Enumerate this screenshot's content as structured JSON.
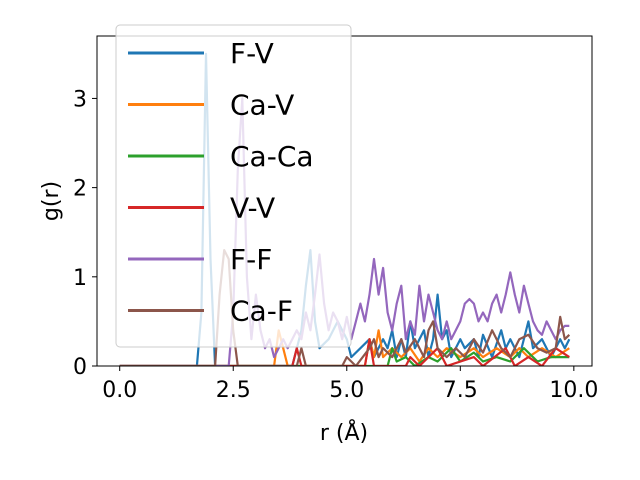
{
  "chart_data": {
    "type": "line",
    "xlabel": "r (Å)",
    "ylabel": "g(r)",
    "xlim": [
      -0.5,
      10.4
    ],
    "ylim": [
      0,
      3.7
    ],
    "xticks": [
      0.0,
      2.5,
      5.0,
      7.5,
      10.0
    ],
    "xtick_labels": [
      "0.0",
      "2.5",
      "5.0",
      "7.5",
      "10.0"
    ],
    "yticks": [
      0,
      1,
      2,
      3
    ],
    "ytick_labels": [
      "0",
      "1",
      "2",
      "3"
    ],
    "grid": false,
    "legend_position": "upper-left",
    "series": [
      {
        "name": "F-V",
        "color": "#1f77b4",
        "points": [
          [
            0,
            0
          ],
          [
            1.7,
            0
          ],
          [
            1.8,
            0.6
          ],
          [
            1.9,
            3.5
          ],
          [
            2.0,
            1.2
          ],
          [
            2.1,
            0
          ],
          [
            3.8,
            0
          ],
          [
            4.0,
            0.4
          ],
          [
            4.1,
            0.9
          ],
          [
            4.2,
            1.3
          ],
          [
            4.3,
            0.5
          ],
          [
            4.4,
            0.2
          ],
          [
            4.6,
            0.3
          ],
          [
            4.8,
            0.5
          ],
          [
            5.0,
            0.3
          ],
          [
            5.1,
            0.1
          ],
          [
            5.3,
            0.2
          ],
          [
            5.5,
            0.3
          ],
          [
            5.6,
            0.1
          ],
          [
            5.8,
            0.3
          ],
          [
            5.9,
            0.2
          ],
          [
            6.0,
            0.4
          ],
          [
            6.1,
            0.1
          ],
          [
            6.2,
            0.3
          ],
          [
            6.3,
            0.1
          ],
          [
            6.4,
            0.5
          ],
          [
            6.5,
            0.2
          ],
          [
            6.7,
            0.4
          ],
          [
            6.8,
            0.1
          ],
          [
            6.9,
            0.3
          ],
          [
            7.0,
            0.8
          ],
          [
            7.1,
            0.3
          ],
          [
            7.2,
            0.4
          ],
          [
            7.3,
            0.1
          ],
          [
            7.5,
            0.3
          ],
          [
            7.6,
            0.2
          ],
          [
            7.8,
            0.3
          ],
          [
            7.9,
            0.1
          ],
          [
            8.0,
            0.35
          ],
          [
            8.2,
            0.1
          ],
          [
            8.4,
            0.4
          ],
          [
            8.5,
            0.2
          ],
          [
            8.6,
            0.3
          ],
          [
            8.8,
            0.1
          ],
          [
            9.0,
            0.5
          ],
          [
            9.1,
            0.2
          ],
          [
            9.3,
            0.3
          ],
          [
            9.5,
            0.1
          ],
          [
            9.7,
            0.3
          ],
          [
            9.8,
            0.2
          ],
          [
            9.9,
            0.3
          ]
        ]
      },
      {
        "name": "Ca-V",
        "color": "#ff7f0e",
        "points": [
          [
            0,
            0
          ],
          [
            3.4,
            0
          ],
          [
            3.5,
            0.4
          ],
          [
            3.6,
            0.2
          ],
          [
            3.7,
            0
          ],
          [
            5.4,
            0
          ],
          [
            5.5,
            0.3
          ],
          [
            5.6,
            0.1
          ],
          [
            5.7,
            0.4
          ],
          [
            5.8,
            0.1
          ],
          [
            6.0,
            0.2
          ],
          [
            6.2,
            0.1
          ],
          [
            6.4,
            0.2
          ],
          [
            6.6,
            0.05
          ],
          [
            6.8,
            0.2
          ],
          [
            7.0,
            0.1
          ],
          [
            7.2,
            0.2
          ],
          [
            7.5,
            0.1
          ],
          [
            7.8,
            0.2
          ],
          [
            8.0,
            0.1
          ],
          [
            8.3,
            0.2
          ],
          [
            8.6,
            0.1
          ],
          [
            8.8,
            0.2
          ],
          [
            9.0,
            0.1
          ],
          [
            9.3,
            0.2
          ],
          [
            9.6,
            0.1
          ],
          [
            9.9,
            0.2
          ]
        ]
      },
      {
        "name": "Ca-Ca",
        "color": "#2ca02c",
        "points": [
          [
            0,
            0
          ],
          [
            5.9,
            0
          ],
          [
            6.0,
            0.2
          ],
          [
            6.1,
            0.05
          ],
          [
            6.3,
            0.1
          ],
          [
            6.5,
            0
          ],
          [
            6.8,
            0.1
          ],
          [
            7.0,
            0.05
          ],
          [
            7.3,
            0.2
          ],
          [
            7.5,
            0.05
          ],
          [
            7.8,
            0.15
          ],
          [
            8.0,
            0.05
          ],
          [
            8.3,
            0.1
          ],
          [
            8.6,
            0.05
          ],
          [
            8.9,
            0.2
          ],
          [
            9.2,
            0.05
          ],
          [
            9.5,
            0.1
          ],
          [
            9.9,
            0.1
          ]
        ]
      },
      {
        "name": "V-V",
        "color": "#d62728",
        "points": [
          [
            0,
            0
          ],
          [
            3.8,
            0
          ],
          [
            3.9,
            0.2
          ],
          [
            4.0,
            0
          ],
          [
            5.4,
            0
          ],
          [
            5.5,
            0.3
          ],
          [
            5.6,
            0
          ],
          [
            6.3,
            0
          ],
          [
            6.4,
            0.1
          ],
          [
            6.6,
            0
          ],
          [
            7.0,
            0.2
          ],
          [
            7.2,
            0
          ],
          [
            7.8,
            0.1
          ],
          [
            8.0,
            0
          ],
          [
            8.5,
            0.2
          ],
          [
            8.7,
            0
          ],
          [
            9.0,
            0.1
          ],
          [
            9.3,
            0
          ],
          [
            9.6,
            0.2
          ],
          [
            9.9,
            0.1
          ]
        ]
      },
      {
        "name": "F-F",
        "color": "#9467bd",
        "points": [
          [
            0,
            0
          ],
          [
            2.4,
            0
          ],
          [
            2.5,
            0.6
          ],
          [
            2.6,
            2.2
          ],
          [
            2.7,
            3.0
          ],
          [
            2.8,
            1.0
          ],
          [
            2.9,
            0.3
          ],
          [
            3.0,
            0.8
          ],
          [
            3.1,
            0.4
          ],
          [
            3.2,
            0.2
          ],
          [
            3.3,
            0.3
          ],
          [
            3.4,
            0.1
          ],
          [
            3.6,
            0.3
          ],
          [
            3.7,
            0.2
          ],
          [
            3.9,
            0.4
          ],
          [
            4.0,
            0.3
          ],
          [
            4.1,
            0.6
          ],
          [
            4.2,
            0.4
          ],
          [
            4.3,
            0.8
          ],
          [
            4.4,
            1.25
          ],
          [
            4.5,
            0.7
          ],
          [
            4.6,
            0.4
          ],
          [
            4.7,
            0.6
          ],
          [
            4.8,
            0.5
          ],
          [
            4.9,
            0.3
          ],
          [
            5.0,
            0.55
          ],
          [
            5.1,
            0.3
          ],
          [
            5.2,
            0.5
          ],
          [
            5.3,
            0.7
          ],
          [
            5.4,
            0.5
          ],
          [
            5.5,
            0.8
          ],
          [
            5.6,
            1.2
          ],
          [
            5.7,
            0.8
          ],
          [
            5.8,
            1.1
          ],
          [
            5.9,
            0.6
          ],
          [
            6.0,
            0.4
          ],
          [
            6.1,
            0.7
          ],
          [
            6.2,
            0.9
          ],
          [
            6.3,
            0.3
          ],
          [
            6.4,
            0.5
          ],
          [
            6.5,
            0.35
          ],
          [
            6.6,
            0.9
          ],
          [
            6.7,
            0.5
          ],
          [
            6.8,
            0.8
          ],
          [
            6.9,
            0.6
          ],
          [
            7.0,
            0.4
          ],
          [
            7.1,
            0.3
          ],
          [
            7.2,
            0.5
          ],
          [
            7.3,
            0.3
          ],
          [
            7.4,
            0.4
          ],
          [
            7.5,
            0.5
          ],
          [
            7.6,
            0.7
          ],
          [
            7.7,
            0.75
          ],
          [
            7.8,
            0.7
          ],
          [
            7.9,
            0.5
          ],
          [
            8.0,
            0.6
          ],
          [
            8.1,
            0.5
          ],
          [
            8.2,
            0.7
          ],
          [
            8.3,
            0.8
          ],
          [
            8.4,
            0.6
          ],
          [
            8.5,
            0.8
          ],
          [
            8.6,
            1.05
          ],
          [
            8.7,
            0.8
          ],
          [
            8.8,
            0.6
          ],
          [
            8.9,
            0.9
          ],
          [
            9.0,
            0.7
          ],
          [
            9.1,
            0.5
          ],
          [
            9.2,
            0.4
          ],
          [
            9.3,
            0.35
          ],
          [
            9.4,
            0.5
          ],
          [
            9.5,
            0.4
          ],
          [
            9.6,
            0.3
          ],
          [
            9.7,
            0.4
          ],
          [
            9.8,
            0.45
          ],
          [
            9.9,
            0.45
          ]
        ]
      },
      {
        "name": "Ca-F",
        "color": "#8c564b",
        "points": [
          [
            0,
            0
          ],
          [
            2.1,
            0
          ],
          [
            2.2,
            0.8
          ],
          [
            2.3,
            1.3
          ],
          [
            2.4,
            1.2
          ],
          [
            2.5,
            0.4
          ],
          [
            2.6,
            0
          ],
          [
            3.9,
            0
          ],
          [
            4.0,
            0.2
          ],
          [
            4.1,
            0
          ],
          [
            4.9,
            0
          ],
          [
            5.0,
            0.1
          ],
          [
            5.2,
            0
          ],
          [
            5.5,
            0.2
          ],
          [
            5.6,
            0.3
          ],
          [
            5.7,
            0.1
          ],
          [
            5.8,
            0.2
          ],
          [
            6.0,
            0.1
          ],
          [
            6.2,
            0.3
          ],
          [
            6.3,
            0.15
          ],
          [
            6.5,
            0.3
          ],
          [
            6.7,
            0.1
          ],
          [
            6.8,
            0.4
          ],
          [
            6.9,
            0.5
          ],
          [
            7.0,
            0.2
          ],
          [
            7.2,
            0.1
          ],
          [
            7.4,
            0.2
          ],
          [
            7.6,
            0.1
          ],
          [
            7.8,
            0.3
          ],
          [
            8.0,
            0.15
          ],
          [
            8.2,
            0.4
          ],
          [
            8.4,
            0.2
          ],
          [
            8.6,
            0.1
          ],
          [
            8.8,
            0.3
          ],
          [
            9.0,
            0.35
          ],
          [
            9.2,
            0.2
          ],
          [
            9.4,
            0.15
          ],
          [
            9.6,
            0.2
          ],
          [
            9.7,
            0.55
          ],
          [
            9.8,
            0.3
          ],
          [
            9.9,
            0.35
          ]
        ]
      }
    ]
  }
}
